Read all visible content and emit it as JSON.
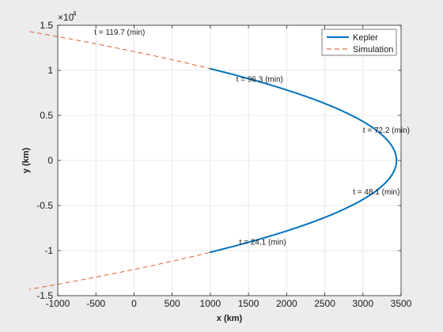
{
  "chart_data": {
    "type": "line",
    "xlabel": "x (km)",
    "ylabel": "y (km)",
    "xlim": [
      -1000,
      3500
    ],
    "ylim": [
      -15000,
      15000
    ],
    "y_exponent_label": "×10",
    "y_exponent_power": "4",
    "x_ticks": [
      -1000,
      -500,
      0,
      500,
      1000,
      1500,
      2000,
      2500,
      3000,
      3500
    ],
    "x_tick_labels": [
      "-1000",
      "-500",
      "0",
      "500",
      "1000",
      "1500",
      "2000",
      "2500",
      "3000",
      "3500"
    ],
    "y_ticks": [
      -15000,
      -10000,
      -5000,
      0,
      5000,
      10000,
      15000
    ],
    "y_tick_labels": [
      "-1.5",
      "-1",
      "-0.5",
      "0",
      "0.5",
      "1",
      "1.5"
    ],
    "grid": true,
    "legend_position": "top-right",
    "orbit": {
      "x_vertex": 3440,
      "y_scale": 10390,
      "x_at_y_scale": 900
    },
    "series": [
      {
        "name": "Kepler",
        "color": "#0072BD",
        "style": "solid",
        "y_range": [
          -10200,
          10200
        ]
      },
      {
        "name": "Simulation",
        "color": "#D95319",
        "style": "dashed",
        "y_range": [
          -14300,
          14300
        ]
      }
    ],
    "annotations": [
      {
        "text": "t =  119.7 (min)",
        "x": -520,
        "y": 14300
      },
      {
        "text": "t =  96.3 (min)",
        "x": 1340,
        "y": 9100
      },
      {
        "text": "t =  72.2 (min)",
        "x": 3000,
        "y": 3400
      },
      {
        "text": "t =  48.1 (min)",
        "x": 2870,
        "y": -3400
      },
      {
        "text": "t =  24.1 (min)",
        "x": 1380,
        "y": -9000
      }
    ]
  }
}
